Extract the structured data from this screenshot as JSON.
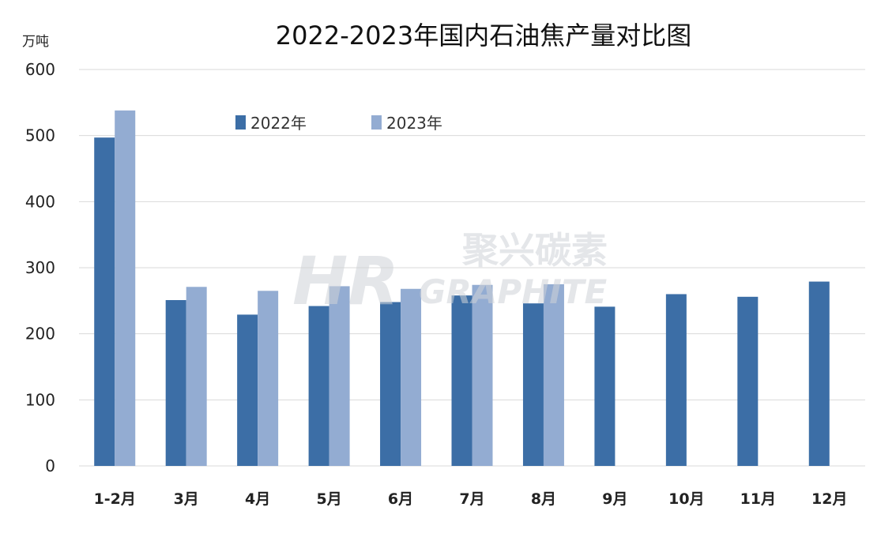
{
  "chart_data": {
    "type": "bar",
    "title": "2022-2023年国内石油焦产量对比图",
    "unit_label": "万吨",
    "categories": [
      "1-2月",
      "3月",
      "4月",
      "5月",
      "6月",
      "7月",
      "8月",
      "9月",
      "10月",
      "11月",
      "12月"
    ],
    "series": [
      {
        "name": "2022年",
        "color": "#3c6ea6",
        "values": [
          497,
          251,
          229,
          242,
          248,
          258,
          246,
          241,
          260,
          256,
          279
        ]
      },
      {
        "name": "2023年",
        "color": "#93acd2",
        "values": [
          538,
          271,
          265,
          272,
          268,
          274,
          275,
          null,
          null,
          null,
          null
        ]
      }
    ],
    "yticks": [
      0,
      100,
      200,
      300,
      400,
      500,
      600
    ],
    "ylim": [
      0,
      600
    ],
    "grid": true,
    "legend_position": "top-left-inside"
  },
  "watermark": {
    "logo_text": "HR",
    "brand_cn": "聚兴碳素",
    "brand_en": "GRAPHITE"
  }
}
